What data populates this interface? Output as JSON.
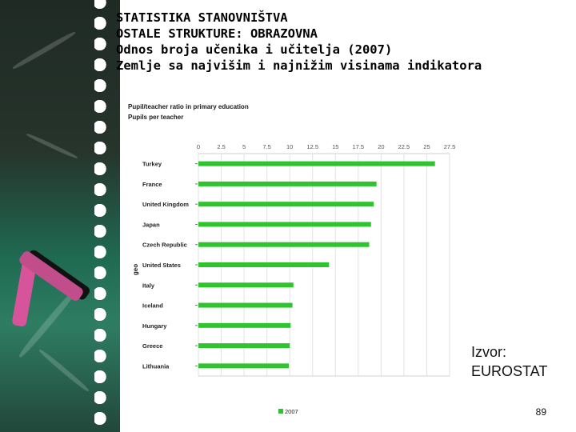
{
  "slide": {
    "title_lines": [
      "STATISTIKA STANOVNIŠTVA",
      "OSTALE STRUKTURE: OBRAZOVNA",
      "Odnos broja učenika i učitelja (2007)",
      "Zemlje sa najvišim i najnižim visinama indikatora"
    ],
    "source_label": "Izvor:",
    "source_name": "EUROSTAT",
    "page_number": "89"
  },
  "chart_data": {
    "type": "bar",
    "orientation": "horizontal",
    "title": "Pupil/teacher ratio in primary education",
    "subtitle": "Pupils per teacher",
    "ylabel": "geo",
    "xlabel": "",
    "xlim": [
      0,
      27.5
    ],
    "xticks": [
      "0",
      "2.5",
      "5",
      "7.5",
      "10",
      "12.5",
      "15",
      "17.5",
      "20",
      "22.5",
      "25",
      "27.5"
    ],
    "categories": [
      "Turkey",
      "France",
      "United Kingdom",
      "Japan",
      "Czech Republic",
      "United States",
      "Italy",
      "Iceland",
      "Hungary",
      "Greece",
      "Lithuania"
    ],
    "series": [
      {
        "name": "2007",
        "color": "#2ec42e",
        "values": [
          25.9,
          19.5,
          19.2,
          18.9,
          18.7,
          14.3,
          10.4,
          10.3,
          10.1,
          10.0,
          9.9
        ]
      }
    ],
    "grid": true,
    "legend_position": "bottom"
  }
}
